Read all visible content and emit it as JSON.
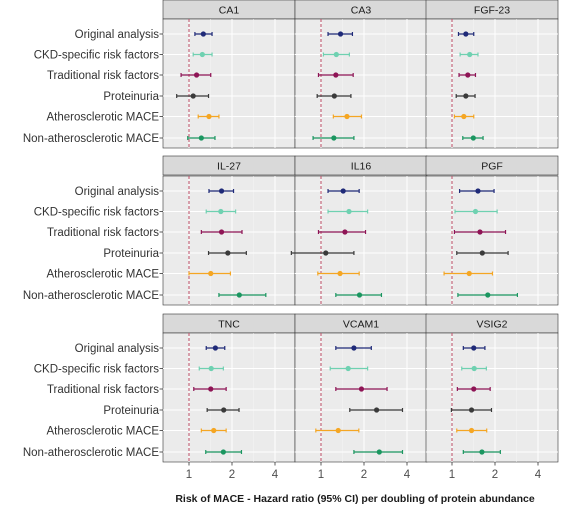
{
  "chart_data": {
    "type": "forest",
    "xlabel": "Risk of MACE - Hazard ratio (95% CI) per doubling of protein abundance",
    "x_scale": "log2",
    "xlim": [
      0.55,
      5.2
    ],
    "x_ticks": [
      1,
      2,
      4
    ],
    "x_tick_labels": [
      "1",
      "2",
      "4"
    ],
    "reference_line": 1,
    "reference_line_style": "dashed",
    "grid": true,
    "layout": "3x3 facet grid",
    "rows": [
      "Original analysis",
      "CKD-specific risk factors",
      "Traditional risk factors",
      "Proteinuria",
      "Atherosclerotic MACE",
      "Non-atherosclerotic MACE"
    ],
    "row_colors": [
      "#1f2a78",
      "#6fd1b1",
      "#8e1455",
      "#3a3a3a",
      "#f5a623",
      "#1b9660"
    ],
    "panels": [
      {
        "title": "CA1",
        "estimates": [
          {
            "est": 1.26,
            "lo": 1.1,
            "hi": 1.45
          },
          {
            "est": 1.24,
            "lo": 1.07,
            "hi": 1.45
          },
          {
            "est": 1.13,
            "lo": 0.88,
            "hi": 1.42
          },
          {
            "est": 1.07,
            "lo": 0.82,
            "hi": 1.37
          },
          {
            "est": 1.38,
            "lo": 1.16,
            "hi": 1.62
          },
          {
            "est": 1.22,
            "lo": 0.98,
            "hi": 1.52
          }
        ]
      },
      {
        "title": "CA3",
        "estimates": [
          {
            "est": 1.37,
            "lo": 1.12,
            "hi": 1.66
          },
          {
            "est": 1.28,
            "lo": 1.04,
            "hi": 1.58
          },
          {
            "est": 1.27,
            "lo": 0.96,
            "hi": 1.68
          },
          {
            "est": 1.24,
            "lo": 0.94,
            "hi": 1.62
          },
          {
            "est": 1.52,
            "lo": 1.22,
            "hi": 1.92
          },
          {
            "est": 1.23,
            "lo": 0.88,
            "hi": 1.7
          }
        ]
      },
      {
        "title": "FGF-23",
        "estimates": [
          {
            "est": 1.25,
            "lo": 1.11,
            "hi": 1.42
          },
          {
            "est": 1.33,
            "lo": 1.14,
            "hi": 1.52
          },
          {
            "est": 1.29,
            "lo": 1.12,
            "hi": 1.46
          },
          {
            "est": 1.25,
            "lo": 1.07,
            "hi": 1.45
          },
          {
            "est": 1.21,
            "lo": 1.04,
            "hi": 1.42
          },
          {
            "est": 1.41,
            "lo": 1.19,
            "hi": 1.65
          }
        ]
      },
      {
        "title": "IL-27",
        "estimates": [
          {
            "est": 1.69,
            "lo": 1.38,
            "hi": 2.05
          },
          {
            "est": 1.67,
            "lo": 1.32,
            "hi": 2.12
          },
          {
            "est": 1.69,
            "lo": 1.22,
            "hi": 2.35
          },
          {
            "est": 1.87,
            "lo": 1.37,
            "hi": 2.52
          },
          {
            "est": 1.42,
            "lo": 1.0,
            "hi": 1.95
          },
          {
            "est": 2.25,
            "lo": 1.62,
            "hi": 3.45
          }
        ]
      },
      {
        "title": "IL16",
        "estimates": [
          {
            "est": 1.43,
            "lo": 1.12,
            "hi": 1.85
          },
          {
            "est": 1.57,
            "lo": 1.12,
            "hi": 2.12
          },
          {
            "est": 1.47,
            "lo": 0.96,
            "hi": 2.05
          },
          {
            "est": 1.08,
            "lo": 0.62,
            "hi": 1.7
          },
          {
            "est": 1.36,
            "lo": 0.95,
            "hi": 1.85
          },
          {
            "est": 1.86,
            "lo": 1.27,
            "hi": 2.65
          }
        ]
      },
      {
        "title": "PGF",
        "estimates": [
          {
            "est": 1.52,
            "lo": 1.13,
            "hi": 1.97
          },
          {
            "est": 1.46,
            "lo": 1.05,
            "hi": 2.07
          },
          {
            "est": 1.57,
            "lo": 1.04,
            "hi": 2.37
          },
          {
            "est": 1.63,
            "lo": 1.08,
            "hi": 2.47
          },
          {
            "est": 1.32,
            "lo": 0.88,
            "hi": 1.92
          },
          {
            "est": 1.78,
            "lo": 1.1,
            "hi": 2.87
          }
        ]
      },
      {
        "title": "TNC",
        "estimates": [
          {
            "est": 1.53,
            "lo": 1.32,
            "hi": 1.78
          },
          {
            "est": 1.43,
            "lo": 1.18,
            "hi": 1.74
          },
          {
            "est": 1.42,
            "lo": 1.08,
            "hi": 1.82
          },
          {
            "est": 1.75,
            "lo": 1.34,
            "hi": 2.24
          },
          {
            "est": 1.49,
            "lo": 1.22,
            "hi": 1.82
          },
          {
            "est": 1.74,
            "lo": 1.31,
            "hi": 2.33
          }
        ]
      },
      {
        "title": "VCAM1",
        "estimates": [
          {
            "est": 1.7,
            "lo": 1.27,
            "hi": 2.25
          },
          {
            "est": 1.55,
            "lo": 1.16,
            "hi": 2.12
          },
          {
            "est": 1.92,
            "lo": 1.27,
            "hi": 2.9
          },
          {
            "est": 2.45,
            "lo": 1.59,
            "hi": 3.72
          },
          {
            "est": 1.32,
            "lo": 0.92,
            "hi": 1.84
          },
          {
            "est": 2.56,
            "lo": 1.7,
            "hi": 3.72
          }
        ]
      },
      {
        "title": "VSIG2",
        "estimates": [
          {
            "est": 1.42,
            "lo": 1.2,
            "hi": 1.7
          },
          {
            "est": 1.43,
            "lo": 1.17,
            "hi": 1.74
          },
          {
            "est": 1.42,
            "lo": 1.09,
            "hi": 1.85
          },
          {
            "est": 1.37,
            "lo": 0.99,
            "hi": 1.89
          },
          {
            "est": 1.37,
            "lo": 1.08,
            "hi": 1.75
          },
          {
            "est": 1.62,
            "lo": 1.2,
            "hi": 2.18
          }
        ]
      }
    ]
  },
  "colors": {
    "panel_background": "#ebebeb",
    "strip_background": "#d9d9d9",
    "grid_major": "#ffffff",
    "grid_minor": "#f4f4f4",
    "reference_line": "#c0506a",
    "axis_text": "#4d4d4d"
  }
}
